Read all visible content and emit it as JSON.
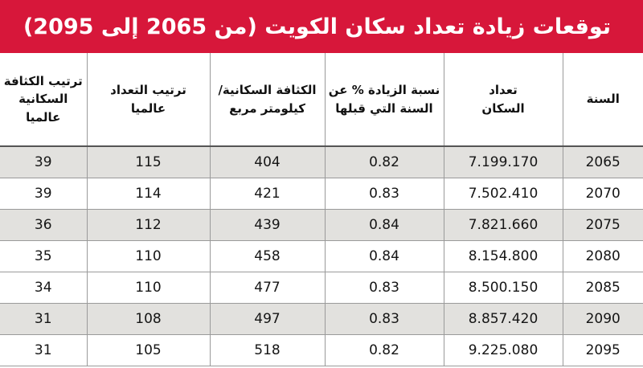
{
  "title": "توقعات زيادة تعداد سكان الكويت (من 2065 إلى 2095)",
  "colors": {
    "title_background": "#d7173a",
    "title_text": "#ffffff",
    "row_shaded": "#e2e1de",
    "row_plain": "#ffffff",
    "grid_line": "#9a9a9a"
  },
  "table": {
    "headers": {
      "year": "السنة",
      "population": "تعداد السكان",
      "increase": "نسبة الزيادة % عن السنة التي قبلها",
      "density": "الكثافة السكانية/ كيلومتر مربع",
      "pop_rank": "ترتيب التعداد عالميا",
      "density_rank": "ترتيب الكثافة السكانية عالميا"
    },
    "rows": [
      {
        "year": "2065",
        "population": "7.199.170",
        "increase": "0.82",
        "density": "404",
        "pop_rank": "115",
        "density_rank": "39"
      },
      {
        "year": "2070",
        "population": "7.502.410",
        "increase": "0.83",
        "density": "421",
        "pop_rank": "114",
        "density_rank": "39"
      },
      {
        "year": "2075",
        "population": "7.821.660",
        "increase": "0.84",
        "density": "439",
        "pop_rank": "112",
        "density_rank": "36"
      },
      {
        "year": "2080",
        "population": "8.154.800",
        "increase": "0.84",
        "density": "458",
        "pop_rank": "110",
        "density_rank": "35"
      },
      {
        "year": "2085",
        "population": "8.500.150",
        "increase": "0.83",
        "density": "477",
        "pop_rank": "110",
        "density_rank": "34"
      },
      {
        "year": "2090",
        "population": "8.857.420",
        "increase": "0.83",
        "density": "497",
        "pop_rank": "108",
        "density_rank": "31"
      },
      {
        "year": "2095",
        "population": "9.225.080",
        "increase": "0.82",
        "density": "518",
        "pop_rank": "105",
        "density_rank": "31"
      }
    ]
  }
}
